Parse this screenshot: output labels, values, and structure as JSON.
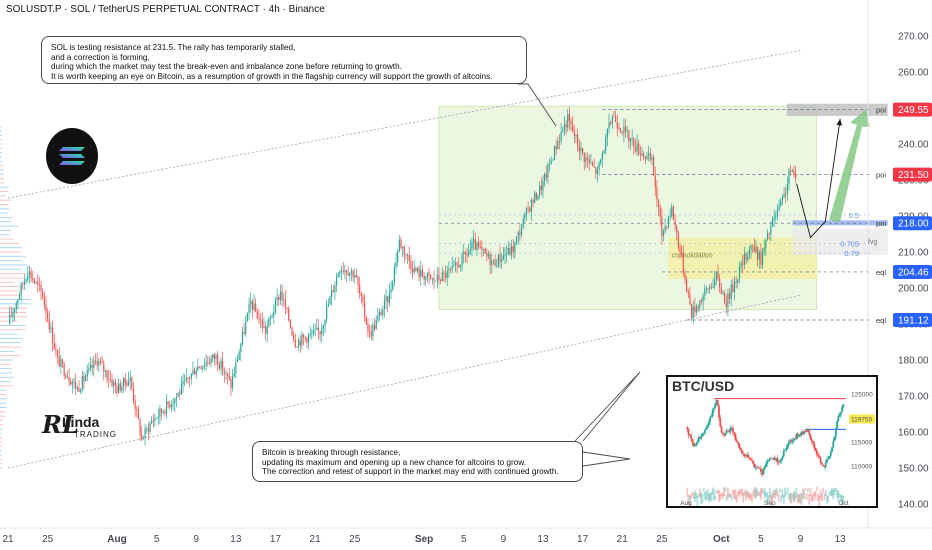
{
  "header": {
    "title": "SOLUSDT.P · SOL / TetherUS PERPETUAL CONTRACT · 4h · Binance"
  },
  "notes": {
    "top": [
      "SOL is testing resistance at 231.5. The rally has temporarily stalled,",
      "and a correction is forming,",
      "during which the market may test the break-even and imbalance zone before returning to growth.",
      "It is worth keeping an eye on Bitcoin, as a resumption of growth in the flagship currency will support the growth of altcoins."
    ],
    "bottom": [
      "Bitcoin is breaking through resistance,",
      "updating its maximum and opening up a new chance for altcoins to grow.",
      "The correction and retest of support in the market may end with continued growth."
    ]
  },
  "brand": {
    "logo_text": "RL",
    "name": "Linda",
    "sub": "TRADING"
  },
  "colors": {
    "up": "#26a69a",
    "down": "#ef5350",
    "zone_green": "#e6f4d7",
    "zone_yellow": "#f3f0a6",
    "tag_red": "#f23645",
    "tag_blue": "#2962ff",
    "fib_blue": "#5b8ee6",
    "arrow_green": "#7cc47c"
  },
  "chart_data": {
    "type": "candlestick",
    "title": "SOLUSDT.P · SOL / TetherUS PERPETUAL CONTRACT · 4h · Binance",
    "ylim": [
      135,
      275
    ],
    "y_ticks": [
      140,
      150,
      160,
      170,
      180,
      190,
      200,
      210,
      220,
      230,
      240,
      250,
      260,
      270
    ],
    "x_ticks": [
      {
        "label": "21",
        "day": 0
      },
      {
        "label": "25",
        "day": 4
      },
      {
        "label": "Aug",
        "day": 11
      },
      {
        "label": "5",
        "day": 15
      },
      {
        "label": "9",
        "day": 19
      },
      {
        "label": "13",
        "day": 23
      },
      {
        "label": "17",
        "day": 27
      },
      {
        "label": "21",
        "day": 31
      },
      {
        "label": "25",
        "day": 35
      },
      {
        "label": "Sep",
        "day": 42
      },
      {
        "label": "5",
        "day": 46
      },
      {
        "label": "9",
        "day": 50
      },
      {
        "label": "13",
        "day": 54
      },
      {
        "label": "17",
        "day": 58
      },
      {
        "label": "21",
        "day": 62
      },
      {
        "label": "25",
        "day": 66
      },
      {
        "label": "Oct",
        "day": 72
      },
      {
        "label": "5",
        "day": 76
      },
      {
        "label": "9",
        "day": 80
      },
      {
        "label": "13",
        "day": 84
      }
    ],
    "close_path": [
      {
        "day": 0,
        "price": 190
      },
      {
        "day": 2,
        "price": 205
      },
      {
        "day": 3.5,
        "price": 198
      },
      {
        "day": 5,
        "price": 180
      },
      {
        "day": 7,
        "price": 172
      },
      {
        "day": 9,
        "price": 180
      },
      {
        "day": 11,
        "price": 172
      },
      {
        "day": 12.3,
        "price": 175
      },
      {
        "day": 13.5,
        "price": 158
      },
      {
        "day": 14.5,
        "price": 163
      },
      {
        "day": 17,
        "price": 170
      },
      {
        "day": 19,
        "price": 178
      },
      {
        "day": 21,
        "price": 181
      },
      {
        "day": 22.5,
        "price": 173
      },
      {
        "day": 24.5,
        "price": 196
      },
      {
        "day": 26,
        "price": 188
      },
      {
        "day": 27.5,
        "price": 199
      },
      {
        "day": 29,
        "price": 185
      },
      {
        "day": 31.5,
        "price": 188
      },
      {
        "day": 33.5,
        "price": 206
      },
      {
        "day": 35,
        "price": 204
      },
      {
        "day": 36.5,
        "price": 187
      },
      {
        "day": 38.5,
        "price": 198
      },
      {
        "day": 39.5,
        "price": 213
      },
      {
        "day": 41,
        "price": 205
      },
      {
        "day": 43,
        "price": 202
      },
      {
        "day": 45,
        "price": 205
      },
      {
        "day": 47,
        "price": 212
      },
      {
        "day": 49,
        "price": 207
      },
      {
        "day": 51,
        "price": 211
      },
      {
        "day": 52.5,
        "price": 222
      },
      {
        "day": 54,
        "price": 229
      },
      {
        "day": 55.5,
        "price": 241
      },
      {
        "day": 56.5,
        "price": 247
      },
      {
        "day": 58,
        "price": 237
      },
      {
        "day": 59.5,
        "price": 232
      },
      {
        "day": 61,
        "price": 248
      },
      {
        "day": 62.3,
        "price": 243
      },
      {
        "day": 63.5,
        "price": 239
      },
      {
        "day": 65,
        "price": 235
      },
      {
        "day": 66,
        "price": 215
      },
      {
        "day": 67,
        "price": 222
      },
      {
        "day": 68,
        "price": 208
      },
      {
        "day": 69,
        "price": 193
      },
      {
        "day": 70.2,
        "price": 198
      },
      {
        "day": 71.5,
        "price": 203
      },
      {
        "day": 72.5,
        "price": 196
      },
      {
        "day": 74,
        "price": 206
      },
      {
        "day": 75,
        "price": 212
      },
      {
        "day": 76,
        "price": 208
      },
      {
        "day": 77,
        "price": 217
      },
      {
        "day": 78.3,
        "price": 225
      },
      {
        "day": 79,
        "price": 233
      },
      {
        "day": 79.6,
        "price": 229
      }
    ],
    "levels": [
      {
        "name": "poi",
        "price": 249.55,
        "tag": "249.55",
        "kind": "red"
      },
      {
        "name": "poi",
        "price": 231.5,
        "tag": "231.50",
        "kind": "red"
      },
      {
        "name": "poi",
        "price": 218.0,
        "tag": "218.00",
        "kind": "blue"
      },
      {
        "name": "eql",
        "price": 204.46,
        "tag": "204.46",
        "kind": "blue"
      },
      {
        "name": "eql",
        "price": 191.12,
        "tag": "191.12",
        "kind": "blue"
      }
    ],
    "fib_labels": [
      {
        "label": "0.5",
        "price": 220.3
      },
      {
        "label": "0.705",
        "price": 212.3
      },
      {
        "label": "0.79",
        "price": 209.7
      }
    ],
    "zone_labels": {
      "consolidation": "consolidation",
      "fvg": "fvg"
    },
    "channel": {
      "upper": [
        [
          0,
          225
        ],
        [
          80,
          266
        ]
      ],
      "lower": [
        [
          0,
          150
        ],
        [
          80,
          198
        ]
      ]
    },
    "projection": [
      [
        79.6,
        229
      ],
      [
        81,
        214
      ],
      [
        82.5,
        218.5
      ],
      [
        84,
        247
      ]
    ],
    "inset": {
      "title": "BTC/USD",
      "y_ticks": [
        "125000",
        "119750",
        "115000",
        "110000"
      ],
      "x_ticks": [
        "Aug",
        "Sep",
        "Oct"
      ],
      "highlight": "119750",
      "resistance": 124000,
      "support": 117600,
      "price_path": [
        {
          "day": 0,
          "price": 118000
        },
        {
          "day": 3,
          "price": 114000
        },
        {
          "day": 6,
          "price": 116500
        },
        {
          "day": 9,
          "price": 119000
        },
        {
          "day": 12,
          "price": 124000
        },
        {
          "day": 14,
          "price": 116500
        },
        {
          "day": 18,
          "price": 117500
        },
        {
          "day": 21,
          "price": 113500
        },
        {
          "day": 24,
          "price": 112000
        },
        {
          "day": 27,
          "price": 110000
        },
        {
          "day": 30,
          "price": 108500
        },
        {
          "day": 33,
          "price": 111500
        },
        {
          "day": 37,
          "price": 111000
        },
        {
          "day": 40,
          "price": 114500
        },
        {
          "day": 44,
          "price": 116500
        },
        {
          "day": 48,
          "price": 117500
        },
        {
          "day": 51,
          "price": 113000
        },
        {
          "day": 54,
          "price": 109500
        },
        {
          "day": 57,
          "price": 112500
        },
        {
          "day": 60,
          "price": 120500
        },
        {
          "day": 62,
          "price": 122500
        }
      ]
    }
  }
}
